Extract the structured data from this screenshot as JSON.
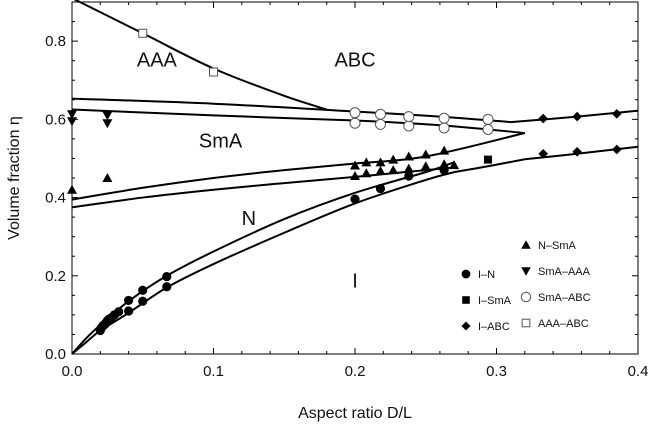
{
  "chart_data": {
    "type": "scatter",
    "xlabel": "Aspect ratio D/L",
    "ylabel": "Volume fraction η",
    "xlim": [
      0.0,
      0.4
    ],
    "ylim": [
      0.0,
      0.9
    ],
    "xticks": [
      "0.0",
      "0.1",
      "0.2",
      "0.3",
      "0.4"
    ],
    "yticks": [
      "0.0",
      "0.2",
      "0.4",
      "0.6",
      "0.8"
    ],
    "grid": false,
    "legend_position": "bottom-right",
    "region_labels": [
      {
        "text": "AAA",
        "x": 0.06,
        "y": 0.735
      },
      {
        "text": "ABC",
        "x": 0.2,
        "y": 0.735
      },
      {
        "text": "SmA",
        "x": 0.105,
        "y": 0.528
      },
      {
        "text": "N",
        "x": 0.125,
        "y": 0.33
      },
      {
        "text": "I",
        "x": 0.2,
        "y": 0.17
      }
    ],
    "series": [
      {
        "name": "I–N",
        "marker": "circle",
        "points": [
          [
            0.02,
            0.06
          ],
          [
            0.021,
            0.068
          ],
          [
            0.022,
            0.073
          ],
          [
            0.023,
            0.075
          ],
          [
            0.024,
            0.08
          ],
          [
            0.025,
            0.085
          ],
          [
            0.026,
            0.089
          ],
          [
            0.028,
            0.093
          ],
          [
            0.03,
            0.1
          ],
          [
            0.033,
            0.108
          ],
          [
            0.04,
            0.11
          ],
          [
            0.04,
            0.137
          ],
          [
            0.05,
            0.135
          ],
          [
            0.05,
            0.163
          ],
          [
            0.067,
            0.172
          ],
          [
            0.067,
            0.198
          ],
          [
            0.2,
            0.396
          ],
          [
            0.218,
            0.423
          ],
          [
            0.238,
            0.455
          ],
          [
            0.263,
            0.47
          ]
        ]
      },
      {
        "name": "I–SmA",
        "marker": "square",
        "points": [
          [
            0.294,
            0.497
          ]
        ]
      },
      {
        "name": "I–ABC",
        "marker": "diamond",
        "points": [
          [
            0.333,
            0.512
          ],
          [
            0.333,
            0.602
          ],
          [
            0.357,
            0.517
          ],
          [
            0.357,
            0.607
          ],
          [
            0.385,
            0.523
          ],
          [
            0.385,
            0.614
          ]
        ]
      },
      {
        "name": "N–SmA",
        "marker": "triangle-up",
        "points": [
          [
            0.0,
            0.42
          ],
          [
            0.025,
            0.45
          ],
          [
            0.2,
            0.455
          ],
          [
            0.2,
            0.482
          ],
          [
            0.208,
            0.462
          ],
          [
            0.208,
            0.49
          ],
          [
            0.218,
            0.468
          ],
          [
            0.218,
            0.49
          ],
          [
            0.227,
            0.47
          ],
          [
            0.227,
            0.497
          ],
          [
            0.238,
            0.474
          ],
          [
            0.238,
            0.505
          ],
          [
            0.25,
            0.48
          ],
          [
            0.25,
            0.51
          ],
          [
            0.263,
            0.485
          ],
          [
            0.263,
            0.52
          ],
          [
            0.27,
            0.483
          ]
        ]
      },
      {
        "name": "SmA–AAA",
        "marker": "triangle-down",
        "points": [
          [
            0.0,
            0.595
          ],
          [
            0.0,
            0.613
          ],
          [
            0.025,
            0.59
          ],
          [
            0.025,
            0.61
          ]
        ]
      },
      {
        "name": "SmA–ABC",
        "marker": "open-circle",
        "points": [
          [
            0.2,
            0.59
          ],
          [
            0.2,
            0.617
          ],
          [
            0.218,
            0.587
          ],
          [
            0.218,
            0.613
          ],
          [
            0.238,
            0.583
          ],
          [
            0.238,
            0.607
          ],
          [
            0.263,
            0.578
          ],
          [
            0.263,
            0.603
          ],
          [
            0.294,
            0.574
          ],
          [
            0.294,
            0.6
          ]
        ]
      },
      {
        "name": "AAA–ABC",
        "marker": "open-square",
        "points": [
          [
            0.05,
            0.82
          ],
          [
            0.1,
            0.721
          ]
        ]
      }
    ],
    "curves": [
      {
        "name": "I–N lower",
        "points": [
          [
            0.0,
            0.0
          ],
          [
            0.01,
            0.03
          ],
          [
            0.02,
            0.06
          ],
          [
            0.04,
            0.105
          ],
          [
            0.067,
            0.17
          ],
          [
            0.1,
            0.23
          ],
          [
            0.15,
            0.31
          ],
          [
            0.2,
            0.385
          ],
          [
            0.25,
            0.445
          ],
          [
            0.27,
            0.465
          ]
        ]
      },
      {
        "name": "I–N upper",
        "points": [
          [
            0.0,
            0.0
          ],
          [
            0.01,
            0.04
          ],
          [
            0.02,
            0.074
          ],
          [
            0.04,
            0.135
          ],
          [
            0.067,
            0.2
          ],
          [
            0.1,
            0.262
          ],
          [
            0.15,
            0.345
          ],
          [
            0.2,
            0.412
          ],
          [
            0.25,
            0.465
          ],
          [
            0.27,
            0.49
          ]
        ]
      },
      {
        "name": "I–SmA lower",
        "points": [
          [
            0.27,
            0.465
          ],
          [
            0.294,
            0.48
          ],
          [
            0.32,
            0.498
          ]
        ]
      },
      {
        "name": "I–ABC lower",
        "points": [
          [
            0.32,
            0.498
          ],
          [
            0.357,
            0.512
          ],
          [
            0.4,
            0.53
          ]
        ]
      },
      {
        "name": "I–ABC upper",
        "points": [
          [
            0.31,
            0.593
          ],
          [
            0.357,
            0.607
          ],
          [
            0.4,
            0.622
          ]
        ]
      },
      {
        "name": "N–SmA lower",
        "points": [
          [
            0.0,
            0.375
          ],
          [
            0.05,
            0.4
          ],
          [
            0.1,
            0.42
          ],
          [
            0.15,
            0.437
          ],
          [
            0.2,
            0.453
          ],
          [
            0.25,
            0.47
          ],
          [
            0.27,
            0.477
          ]
        ]
      },
      {
        "name": "N–SmA upper",
        "points": [
          [
            0.0,
            0.395
          ],
          [
            0.05,
            0.425
          ],
          [
            0.1,
            0.45
          ],
          [
            0.15,
            0.47
          ],
          [
            0.2,
            0.487
          ],
          [
            0.25,
            0.505
          ],
          [
            0.32,
            0.565
          ]
        ]
      },
      {
        "name": "SmA upper boundary",
        "points": [
          [
            0.0,
            0.625
          ],
          [
            0.1,
            0.61
          ],
          [
            0.2,
            0.597
          ],
          [
            0.26,
            0.585
          ],
          [
            0.32,
            0.565
          ]
        ]
      },
      {
        "name": "AAA lower boundary",
        "points": [
          [
            0.0,
            0.653
          ],
          [
            0.1,
            0.64
          ],
          [
            0.2,
            0.62
          ],
          [
            0.26,
            0.607
          ],
          [
            0.31,
            0.593
          ]
        ]
      },
      {
        "name": "AAA–ABC",
        "points": [
          [
            0.0,
            0.91
          ],
          [
            0.05,
            0.82
          ],
          [
            0.1,
            0.73
          ],
          [
            0.15,
            0.66
          ],
          [
            0.18,
            0.625
          ]
        ]
      }
    ]
  }
}
